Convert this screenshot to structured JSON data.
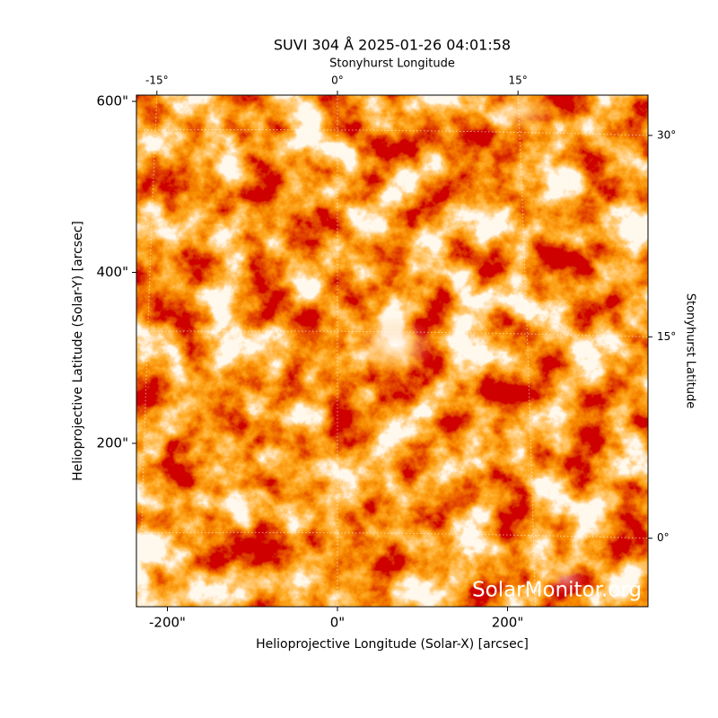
{
  "chart_data": {
    "type": "image",
    "title": "SUVI 304 Å 2025-01-26 04:01:58",
    "xlabel": "Helioprojective Longitude (Solar-X) [arcsec]",
    "ylabel": "Helioprojective Latitude (Solar-Y) [arcsec]",
    "top_label": "Stonyhurst Longitude",
    "right_label": "Stonyhurst Latitude",
    "watermark": "SolarMonitor.org",
    "xlim": [
      -236.4,
      365.2
    ],
    "xticks": [
      {
        "value": -200,
        "label": "-200\""
      },
      {
        "value": 0,
        "label": "0\""
      },
      {
        "value": 200,
        "label": "200\""
      }
    ],
    "ylim": [
      8.9,
      607.3
    ],
    "yticks": [
      {
        "value": 200,
        "label": "200\""
      },
      {
        "value": 400,
        "label": "400\""
      },
      {
        "value": 600,
        "label": "600\""
      }
    ],
    "top_xlim": [
      -16.7,
      25.8
    ],
    "top_ticks": [
      {
        "value": -15,
        "label": "-15°"
      },
      {
        "value": 0,
        "label": "0°"
      },
      {
        "value": 15,
        "label": "15°"
      }
    ],
    "right_ylim": [
      -5.1,
      33.0
    ],
    "right_ticks": [
      {
        "value": 0,
        "label": "0°"
      },
      {
        "value": 15,
        "label": "15°"
      },
      {
        "value": 30,
        "label": "30°"
      }
    ],
    "grid": true
  }
}
